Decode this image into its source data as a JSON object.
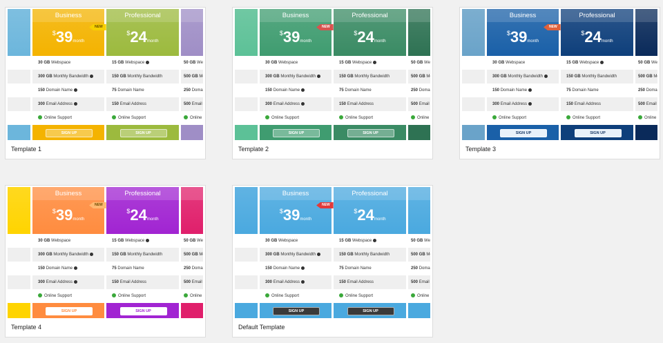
{
  "plans": [
    {
      "title": "Business",
      "currency": "$",
      "price": "39",
      "period": "month",
      "badge": "NEW",
      "button": "SIGN UP",
      "features": [
        {
          "amount": "30 GB",
          "label": "Webspace"
        },
        {
          "amount": "300 GB",
          "label": "Monthly Bandwidth"
        },
        {
          "amount": "150",
          "label": "Domain Name"
        },
        {
          "amount": "300",
          "label": "Email Address"
        },
        {
          "amount": "",
          "label": "Online Support"
        }
      ]
    },
    {
      "title": "Professional",
      "currency": "$",
      "price": "24",
      "period": "month",
      "button": "SIGN UP",
      "features": [
        {
          "amount": "15 GB",
          "label": "Webspace"
        },
        {
          "amount": "150 GB",
          "label": "Monthly Bandwidth"
        },
        {
          "amount": "75",
          "label": "Domain Name"
        },
        {
          "amount": "150",
          "label": "Email Address"
        },
        {
          "amount": "",
          "label": "Online Support"
        }
      ]
    },
    {
      "features": [
        {
          "amount": "50 GB",
          "label": "Webspace"
        },
        {
          "amount": "500 GB",
          "label": "Monthly Bandwidth"
        },
        {
          "amount": "250",
          "label": "Domain Name"
        },
        {
          "amount": "500",
          "label": "Email Address"
        },
        {
          "amount": "",
          "label": "Online Support"
        }
      ]
    }
  ],
  "templates": [
    {
      "name": "Template 1",
      "colors": {
        "left": "#6cb6dc",
        "business": "#f4b300",
        "professional": "#9cba3e",
        "right": "#9f8ec6",
        "badge": "#f6d000",
        "button_bg": "light",
        "button_fg": "#ffffff"
      }
    },
    {
      "name": "Template 2",
      "colors": {
        "left": "#5cc197",
        "business": "#3f9c70",
        "professional": "#3a8b64",
        "right": "#2e7253",
        "badge": "#d9534f",
        "button_bg": "light",
        "button_fg": "#ffffff"
      }
    },
    {
      "name": "Template 3",
      "colors": {
        "left": "#6aa3c9",
        "business": "#1a60a8",
        "professional": "#0e3f7b",
        "right": "#0a2a5a",
        "badge": "#e0603a",
        "button_bg": "#e8f1fa",
        "button_fg": "#1a3a66"
      }
    },
    {
      "name": "Template 4",
      "colors": {
        "left": "#ffd400",
        "business": "#ff8c3f",
        "professional": "#a124d2",
        "right": "#e01f6b",
        "badge": "#ffb870",
        "button_bg": "#ffffff",
        "button_fg": "column"
      }
    },
    {
      "name": "Default Template",
      "colors": {
        "left": "#4aa9df",
        "business": "#4aa9df",
        "professional": "#4aa9df",
        "right": "#4aa9df",
        "badge": "#e23a3a",
        "button_bg": "#3a3a3a",
        "button_fg": "#ffffff"
      }
    }
  ]
}
